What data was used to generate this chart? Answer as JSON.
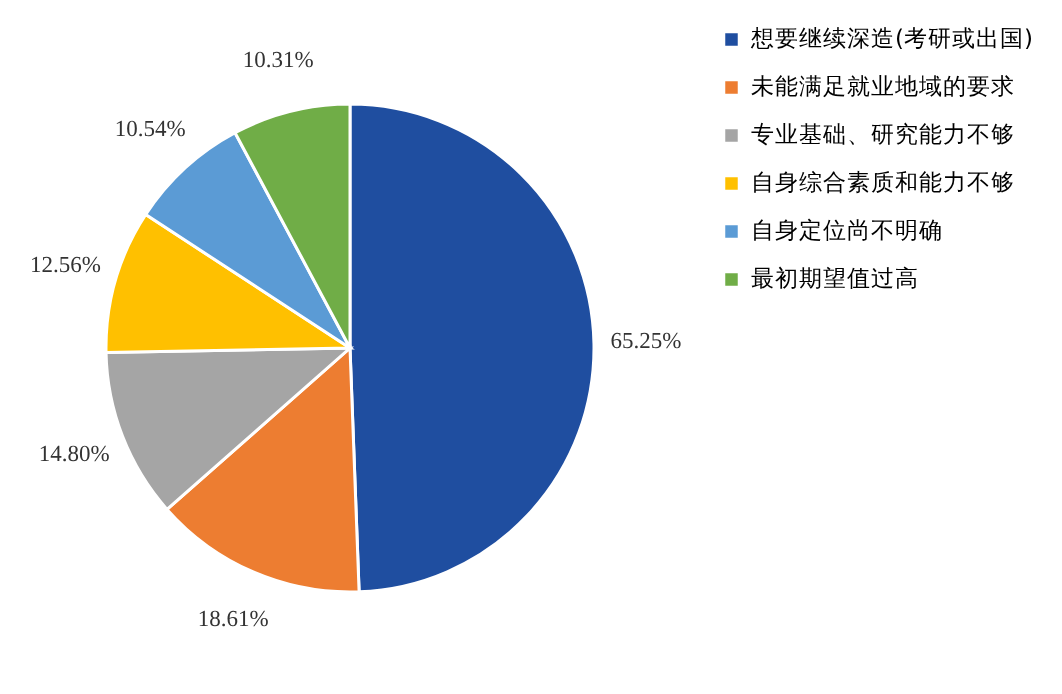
{
  "chart_data": {
    "type": "pie",
    "categories": [
      "想要继续深造(考研或出国)",
      "未能满足就业地域的要求",
      "专业基础、研究能力不够",
      "自身综合素质和能力不够",
      "自身定位尚不明确",
      "最初期望值过高"
    ],
    "values": [
      65.25,
      18.61,
      14.8,
      12.56,
      10.54,
      10.31
    ],
    "value_labels": [
      "65.25%",
      "18.61%",
      "14.80%",
      "12.56%",
      "10.54%",
      "10.31%"
    ],
    "colors": [
      "#1f4ea0",
      "#ed7d31",
      "#a5a5a5",
      "#ffc000",
      "#5b9bd5",
      "#70ad47"
    ],
    "legend": "right"
  }
}
